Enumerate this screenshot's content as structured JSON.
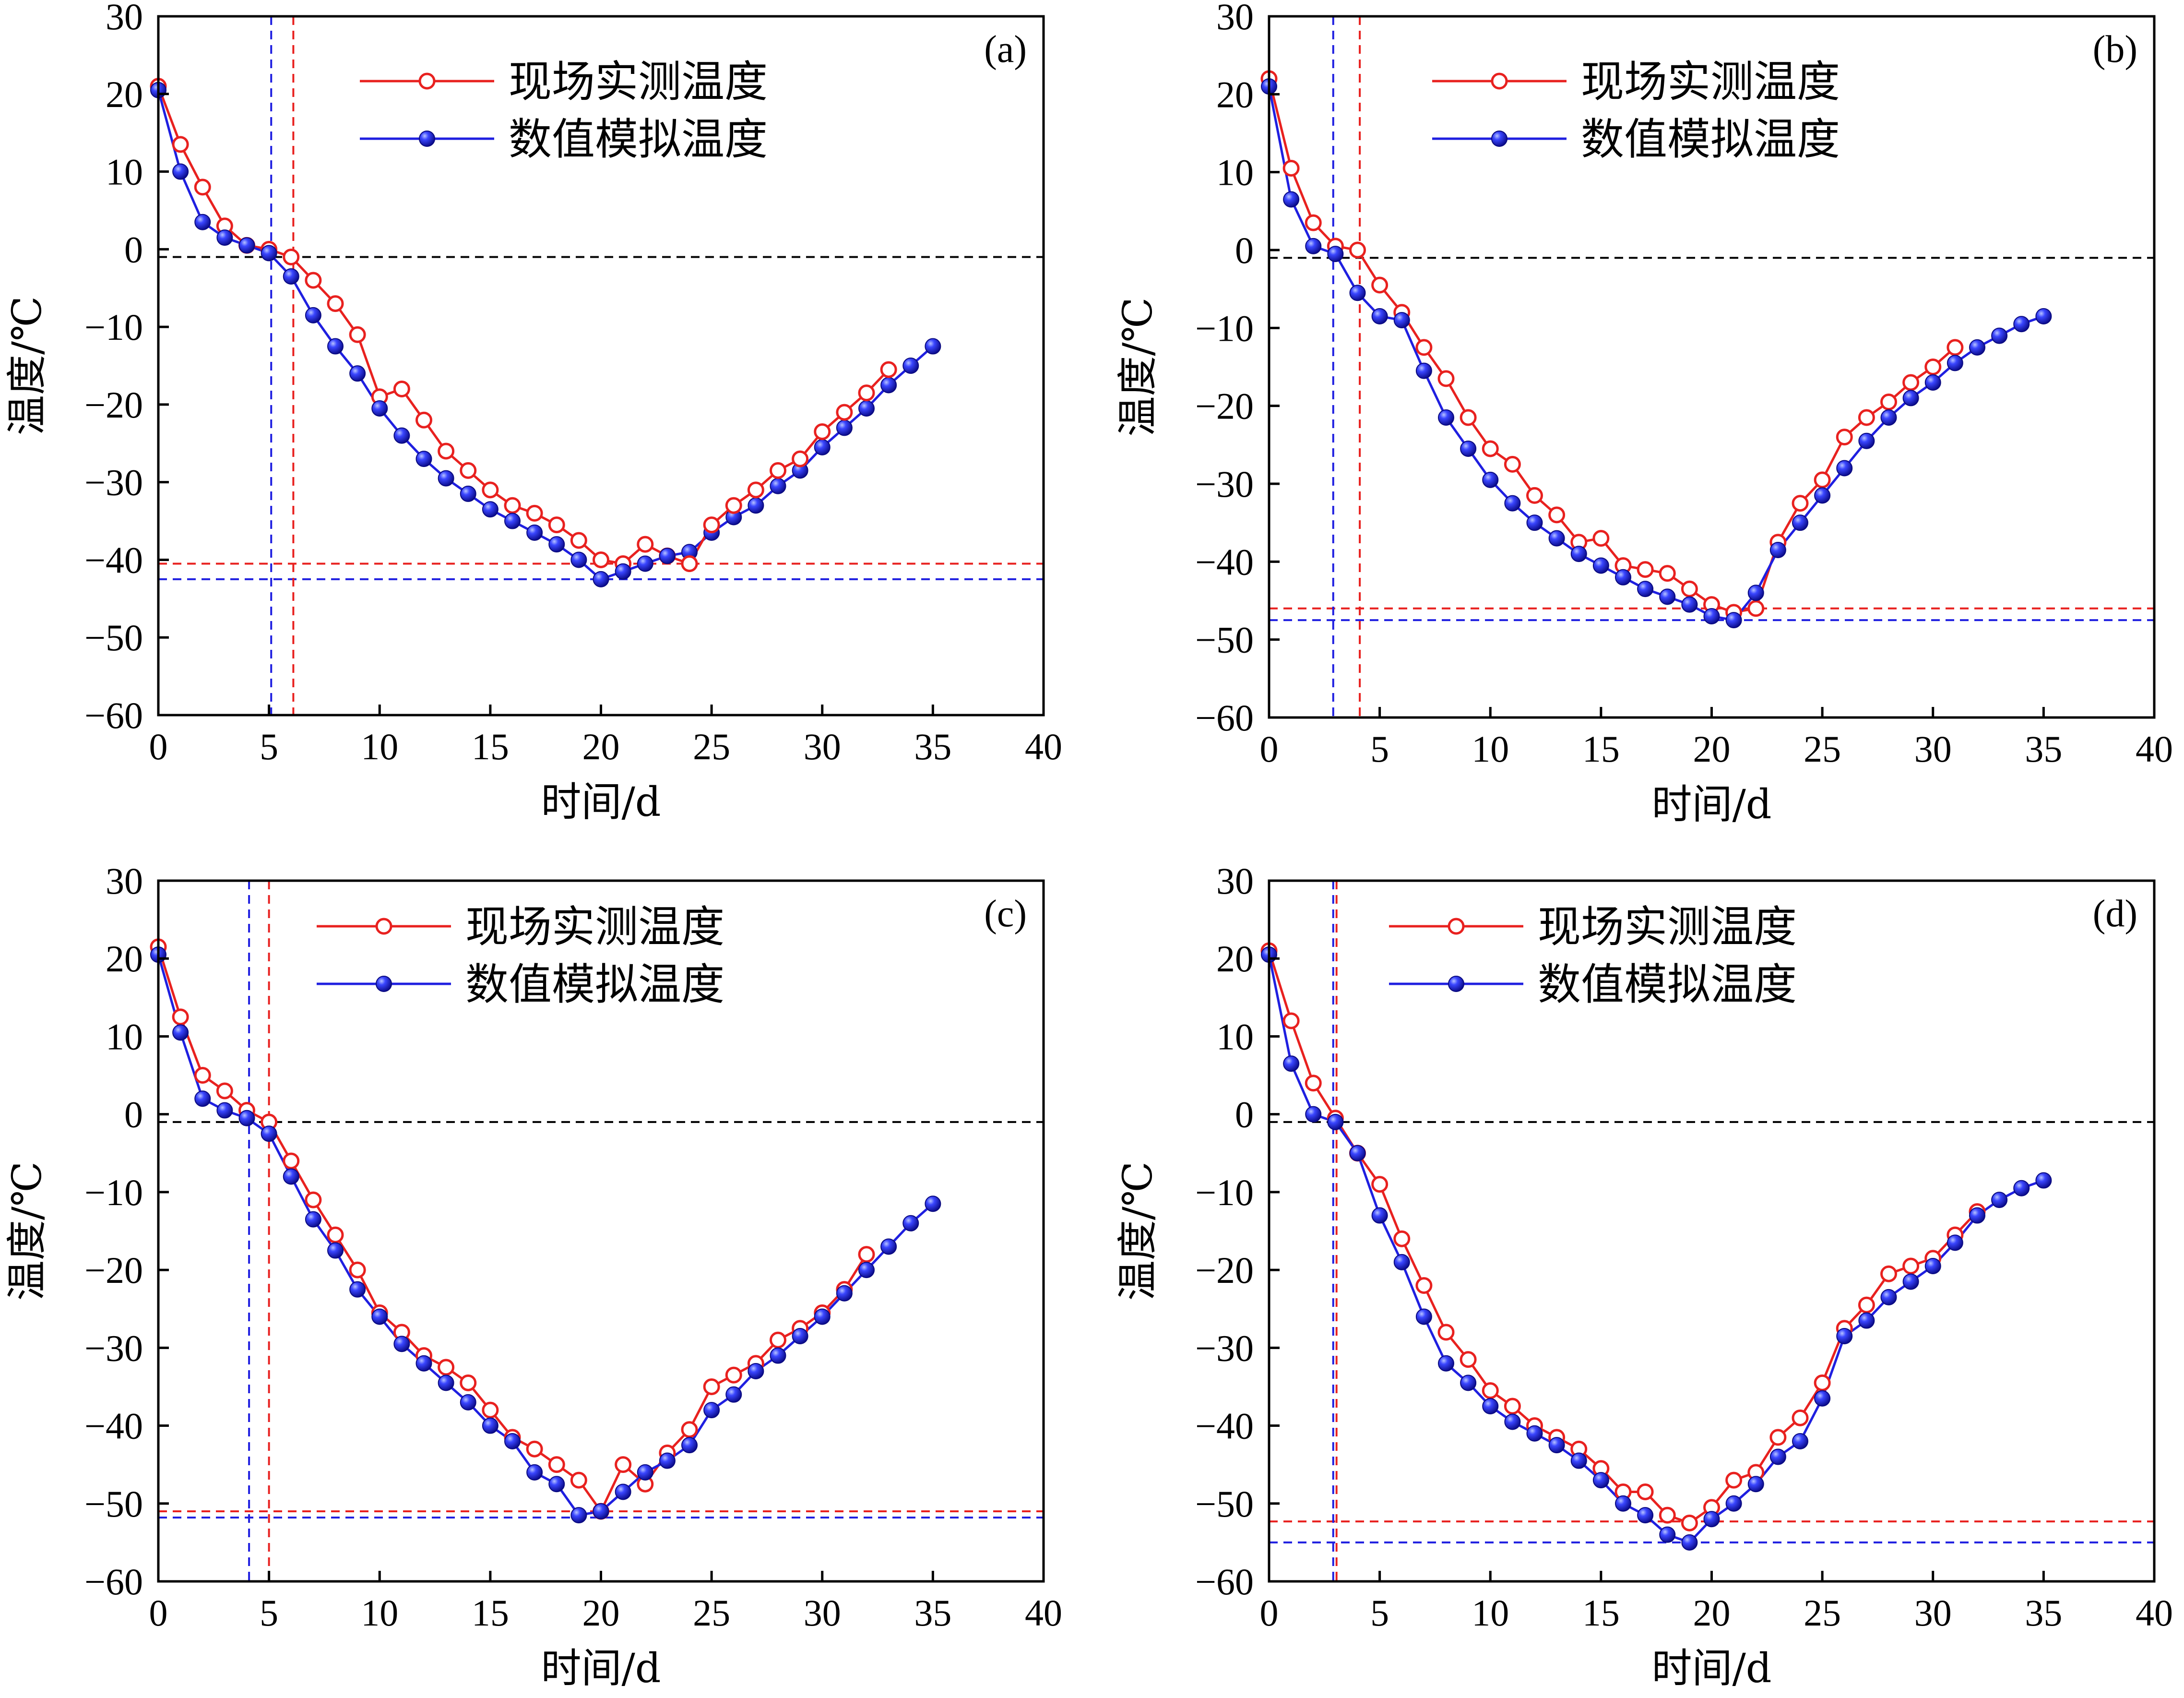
{
  "chart_data": [
    {
      "type": "line",
      "panel_label": "(a)",
      "xlabel": "时间/d",
      "ylabel": "温度/℃",
      "xlim": [
        0,
        40
      ],
      "ylim": [
        -60,
        30
      ],
      "xticks": [
        0,
        5,
        10,
        15,
        20,
        25,
        30,
        35,
        40
      ],
      "yticks": [
        -60,
        -50,
        -40,
        -30,
        -20,
        -10,
        0,
        10,
        20,
        30
      ],
      "legend_position": "top-center",
      "series": [
        {
          "name": "现场实测温度",
          "color": "#e8211f",
          "marker": "open-circle",
          "x": [
            0,
            1,
            2,
            3,
            4,
            5,
            6,
            7,
            8,
            9,
            10,
            11,
            12,
            13,
            14,
            15,
            16,
            17,
            18,
            19,
            20,
            21,
            22,
            23,
            24
          ],
          "y": [
            21,
            13.5,
            8,
            3,
            0.5,
            0,
            -1,
            -4,
            -7,
            -11,
            -19,
            -18,
            -22,
            -26,
            -28.5,
            -31,
            -33,
            -34,
            -35.5,
            -37.5,
            -40,
            -40.5,
            -38,
            -39.5,
            -40.5
          ]
        },
        {
          "name": "数值模拟温度",
          "color": "#1f1fe0",
          "marker": "filled-sphere",
          "x": [
            0,
            1,
            2,
            3,
            4,
            5,
            6,
            7,
            8,
            9,
            10,
            11,
            12,
            13,
            14,
            15,
            16,
            17,
            18,
            19,
            20,
            21,
            22,
            23,
            24,
            25,
            26,
            27,
            28,
            29,
            30,
            31,
            32,
            33,
            34,
            35
          ],
          "y": [
            20.5,
            10,
            3.5,
            1.5,
            0.5,
            -0.5,
            -3.5,
            -8.5,
            -12.5,
            -16,
            -20.5,
            -24,
            -27,
            -29.5,
            -31.5,
            -33.5,
            -35,
            -36.5,
            -38,
            -40,
            -42.5,
            -41.5,
            -40.5,
            -39.5,
            -39,
            -36.5,
            -34.5,
            -33,
            -30.5,
            -28.5,
            -25.5,
            -23,
            -20.5,
            -17.5,
            -15,
            -12.5
          ]
        },
        {
          "name": "",
          "color": "#e8211f",
          "marker": "open-circle",
          "x": [
            24,
            25,
            26,
            27,
            28,
            29,
            30,
            31,
            32,
            33
          ],
          "y": [
            -40.5,
            -35.5,
            -33,
            -31,
            -28.5,
            -27,
            -23.5,
            -21,
            -18.5,
            -15.5
          ]
        }
      ],
      "reference_lines": [
        {
          "orientation": "horizontal",
          "value": -1,
          "color": "#000000"
        },
        {
          "orientation": "horizontal",
          "value": -40.5,
          "color": "#e8211f"
        },
        {
          "orientation": "horizontal",
          "value": -42.5,
          "color": "#1f1fe0"
        },
        {
          "orientation": "vertical",
          "value": 5.1,
          "color": "#1f1fe0"
        },
        {
          "orientation": "vertical",
          "value": 6.1,
          "color": "#e8211f"
        }
      ]
    },
    {
      "type": "line",
      "panel_label": "(b)",
      "xlabel": "时间/d",
      "ylabel": "温度/℃",
      "xlim": [
        0,
        40
      ],
      "ylim": [
        -60,
        30
      ],
      "xticks": [
        0,
        5,
        10,
        15,
        20,
        25,
        30,
        35,
        40
      ],
      "yticks": [
        -60,
        -50,
        -40,
        -30,
        -20,
        -10,
        0,
        10,
        20,
        30
      ],
      "legend_position": "top-center",
      "series": [
        {
          "name": "现场实测温度",
          "color": "#e8211f",
          "marker": "open-circle",
          "x": [
            0,
            1,
            2,
            3,
            4,
            5,
            6,
            7,
            8,
            9,
            10,
            11,
            12,
            13,
            14,
            15,
            16,
            17,
            18,
            19,
            20,
            21,
            22,
            23,
            24,
            25,
            26,
            27,
            28,
            29,
            30,
            31
          ],
          "y": [
            22,
            10.5,
            3.5,
            0.5,
            0,
            -4.5,
            -8,
            -12.5,
            -16.5,
            -21.5,
            -25.5,
            -27.5,
            -31.5,
            -34,
            -37.5,
            -37,
            -40.5,
            -41,
            -41.5,
            -43.5,
            -45.5,
            -46.5,
            -46,
            -37.5,
            -32.5,
            -29.5,
            -24,
            -21.5,
            -19.5,
            -17,
            -15,
            -12.5
          ]
        },
        {
          "name": "数值模拟温度",
          "color": "#1f1fe0",
          "marker": "filled-sphere",
          "x": [
            0,
            1,
            2,
            3,
            4,
            5,
            6,
            7,
            8,
            9,
            10,
            11,
            12,
            13,
            14,
            15,
            16,
            17,
            18,
            19,
            20,
            21,
            22,
            23,
            24,
            25,
            26,
            27,
            28,
            29,
            30,
            31,
            32,
            33,
            34,
            35
          ],
          "y": [
            21,
            6.5,
            0.5,
            -0.5,
            -5.5,
            -8.5,
            -9,
            -15.5,
            -21.5,
            -25.5,
            -29.5,
            -32.5,
            -35,
            -37,
            -39,
            -40.5,
            -42,
            -43.5,
            -44.5,
            -45.5,
            -47,
            -47.5,
            -44,
            -38.5,
            -35,
            -31.5,
            -28,
            -24.5,
            -21.5,
            -19,
            -17,
            -14.5,
            -12.5,
            -11,
            -9.5,
            -8.5
          ]
        }
      ],
      "reference_lines": [
        {
          "orientation": "horizontal",
          "value": -1,
          "color": "#000000"
        },
        {
          "orientation": "horizontal",
          "value": -46,
          "color": "#e8211f"
        },
        {
          "orientation": "horizontal",
          "value": -47.5,
          "color": "#1f1fe0"
        },
        {
          "orientation": "vertical",
          "value": 2.9,
          "color": "#1f1fe0"
        },
        {
          "orientation": "vertical",
          "value": 4.1,
          "color": "#e8211f"
        }
      ]
    },
    {
      "type": "line",
      "panel_label": "(c)",
      "xlabel": "时间/d",
      "ylabel": "温度/℃",
      "xlim": [
        0,
        40
      ],
      "ylim": [
        -60,
        30
      ],
      "xticks": [
        0,
        5,
        10,
        15,
        20,
        25,
        30,
        35,
        40
      ],
      "yticks": [
        -60,
        -50,
        -40,
        -30,
        -20,
        -10,
        0,
        10,
        20,
        30
      ],
      "legend_position": "top-center",
      "series": [
        {
          "name": "现场实测温度",
          "color": "#e8211f",
          "marker": "open-circle",
          "x": [
            0,
            1,
            2,
            3,
            4,
            5,
            6,
            7,
            8,
            9,
            10,
            11,
            12,
            13,
            14,
            15,
            16,
            17,
            18,
            19,
            20,
            21,
            22,
            23,
            24,
            25,
            26,
            27,
            28,
            29,
            30,
            31,
            32
          ],
          "y": [
            21.5,
            12.5,
            5,
            3,
            0.5,
            -1,
            -6,
            -11,
            -15.5,
            -20,
            -25.5,
            -28,
            -31,
            -32.5,
            -34.5,
            -38,
            -41.5,
            -43,
            -45,
            -47,
            -51,
            -45,
            -47.5,
            -43.5,
            -40.5,
            -35,
            -33.5,
            -32,
            -29,
            -27.5,
            -25.5,
            -22.5,
            -18
          ]
        },
        {
          "name": "数值模拟温度",
          "color": "#1f1fe0",
          "marker": "filled-sphere",
          "x": [
            0,
            1,
            2,
            3,
            4,
            5,
            6,
            7,
            8,
            9,
            10,
            11,
            12,
            13,
            14,
            15,
            16,
            17,
            18,
            19,
            20,
            21,
            22,
            23,
            24,
            25,
            26,
            27,
            28,
            29,
            30,
            31,
            32,
            33,
            34,
            35
          ],
          "y": [
            20.5,
            10.5,
            2,
            0.5,
            -0.5,
            -2.5,
            -8,
            -13.5,
            -17.5,
            -22.5,
            -26,
            -29.5,
            -32,
            -34.5,
            -37,
            -40,
            -42,
            -46,
            -47.5,
            -51.5,
            -51,
            -48.5,
            -46,
            -44.5,
            -42.5,
            -38,
            -36,
            -33,
            -31,
            -28.5,
            -26,
            -23,
            -20,
            -17,
            -14,
            -11.5
          ]
        }
      ],
      "reference_lines": [
        {
          "orientation": "horizontal",
          "value": -1,
          "color": "#000000"
        },
        {
          "orientation": "horizontal",
          "value": -51,
          "color": "#e8211f"
        },
        {
          "orientation": "horizontal",
          "value": -51.8,
          "color": "#1f1fe0"
        },
        {
          "orientation": "vertical",
          "value": 4.1,
          "color": "#1f1fe0"
        },
        {
          "orientation": "vertical",
          "value": 5.0,
          "color": "#e8211f"
        }
      ]
    },
    {
      "type": "line",
      "panel_label": "(d)",
      "xlabel": "时间/d",
      "ylabel": "温度/℃",
      "xlim": [
        0,
        40
      ],
      "ylim": [
        -60,
        30
      ],
      "xticks": [
        0,
        5,
        10,
        15,
        20,
        25,
        30,
        35,
        40
      ],
      "yticks": [
        -60,
        -50,
        -40,
        -30,
        -20,
        -10,
        0,
        10,
        20,
        30
      ],
      "legend_position": "top-center",
      "series": [
        {
          "name": "现场实测温度",
          "color": "#e8211f",
          "marker": "open-circle",
          "x": [
            0,
            1,
            2,
            3,
            4,
            5,
            6,
            7,
            8,
            9,
            10,
            11,
            12,
            13,
            14,
            15,
            16,
            17,
            18,
            19,
            20,
            21,
            22,
            23,
            24,
            25,
            26,
            27,
            28,
            29,
            30,
            31,
            32
          ],
          "y": [
            21,
            12,
            4,
            -0.5,
            -5,
            -9,
            -16,
            -22,
            -28,
            -31.5,
            -35.5,
            -37.5,
            -40,
            -41.5,
            -43,
            -45.5,
            -48.5,
            -48.5,
            -51.5,
            -52.5,
            -50.5,
            -47,
            -46,
            -41.5,
            -39,
            -34.5,
            -27.5,
            -24.5,
            -20.5,
            -19.5,
            -18.5,
            -15.5,
            -12.5
          ]
        },
        {
          "name": "数值模拟温度",
          "color": "#1f1fe0",
          "marker": "filled-sphere",
          "x": [
            0,
            1,
            2,
            3,
            4,
            5,
            6,
            7,
            8,
            9,
            10,
            11,
            12,
            13,
            14,
            15,
            16,
            17,
            18,
            19,
            20,
            21,
            22,
            23,
            24,
            25,
            26,
            27,
            28,
            29,
            30,
            31,
            32,
            33,
            34,
            35
          ],
          "y": [
            20.5,
            6.5,
            0,
            -1,
            -5,
            -13,
            -19,
            -26,
            -32,
            -34.5,
            -37.5,
            -39.5,
            -41,
            -42.5,
            -44.5,
            -47,
            -50,
            -51.5,
            -54,
            -55,
            -52,
            -50,
            -47.5,
            -44,
            -42,
            -36.5,
            -28.5,
            -26.5,
            -23.5,
            -21.5,
            -19.5,
            -16.5,
            -13,
            -11,
            -9.5,
            -8.5
          ]
        }
      ],
      "reference_lines": [
        {
          "orientation": "horizontal",
          "value": -1,
          "color": "#000000"
        },
        {
          "orientation": "horizontal",
          "value": -52.3,
          "color": "#e8211f"
        },
        {
          "orientation": "horizontal",
          "value": -55,
          "color": "#1f1fe0"
        },
        {
          "orientation": "vertical",
          "value": 2.9,
          "color": "#1f1fe0"
        },
        {
          "orientation": "vertical",
          "value": 3.05,
          "color": "#e8211f"
        }
      ]
    }
  ]
}
